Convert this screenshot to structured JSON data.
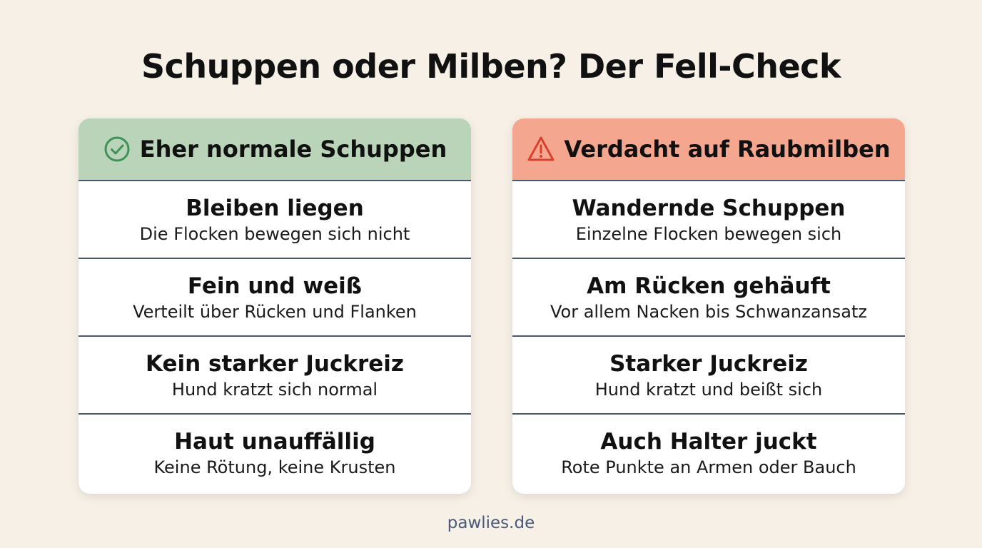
{
  "title": "Schuppen oder Milben? Der Fell-Check",
  "columns": [
    {
      "heading": "Eher normale Schuppen",
      "items": [
        {
          "title": "Bleiben liegen",
          "description": "Die Flocken bewegen sich nicht"
        },
        {
          "title": "Fein und weiß",
          "description": "Verteilt über Rücken und Flanken"
        },
        {
          "title": "Kein starker Juckreiz",
          "description": "Hund kratzt sich normal"
        },
        {
          "title": "Haut unauffällig",
          "description": "Keine Rötung, keine Krusten"
        }
      ]
    },
    {
      "heading": "Verdacht auf Raubmilben",
      "items": [
        {
          "title": "Wandernde Schuppen",
          "description": "Einzelne Flocken bewegen sich"
        },
        {
          "title": "Am Rücken gehäuft",
          "description": "Vor allem Nacken bis Schwanzansatz"
        },
        {
          "title": "Starker Juckreiz",
          "description": "Hund kratzt und beißt sich"
        },
        {
          "title": "Auch Halter juckt",
          "description": "Rote Punkte an Armen oder Bauch"
        }
      ]
    }
  ],
  "footer": "pawlies.de"
}
